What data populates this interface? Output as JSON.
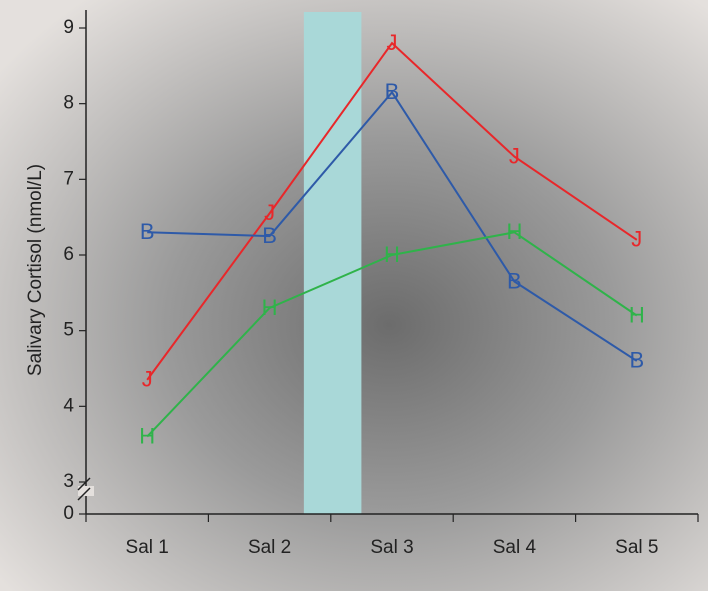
{
  "chart_data": {
    "type": "line",
    "y_label": "Salivary Cortisol (nmol/L)",
    "categories": [
      "Sal 1",
      "Sal 2",
      "Sal 3",
      "Sal 4",
      "Sal 5"
    ],
    "series": [
      {
        "marker": "J",
        "color": "#e8272a",
        "values": [
          4.35,
          6.55,
          8.8,
          7.3,
          6.2
        ]
      },
      {
        "marker": "B",
        "color": "#2e5aa8",
        "values": [
          6.3,
          6.25,
          8.15,
          5.65,
          4.6
        ]
      },
      {
        "marker": "H",
        "color": "#2fb34a",
        "values": [
          3.6,
          5.3,
          6.0,
          6.3,
          5.2
        ]
      }
    ],
    "ylim": [
      3,
      9
    ],
    "yticks": [
      3,
      4,
      5,
      6,
      7,
      8,
      9
    ],
    "axis_break_tick": 0,
    "band_color": "#a9d8d8"
  }
}
